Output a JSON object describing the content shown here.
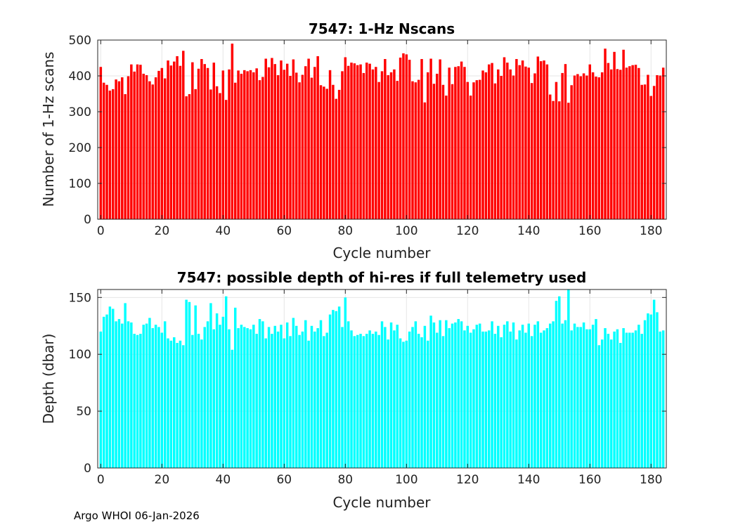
{
  "chart_data": [
    {
      "type": "bar",
      "title": "7547: 1-Hz Nscans",
      "xlabel": "Cycle number",
      "ylabel": "Number of 1-Hz scans",
      "xlim": [
        -1,
        185
      ],
      "ylim": [
        0,
        500
      ],
      "xticks": [
        0,
        20,
        40,
        60,
        80,
        100,
        120,
        140,
        160,
        180
      ],
      "yticks": [
        0,
        100,
        200,
        300,
        400,
        500
      ],
      "grid": true,
      "color": "#ff0000",
      "x_start": 0,
      "values": [
        425,
        381,
        375,
        359,
        363,
        390,
        385,
        396,
        349,
        399,
        432,
        412,
        432,
        431,
        406,
        402,
        385,
        376,
        396,
        414,
        422,
        393,
        443,
        429,
        440,
        455,
        428,
        470,
        343,
        349,
        438,
        363,
        420,
        447,
        433,
        422,
        362,
        437,
        371,
        352,
        415,
        333,
        418,
        490,
        381,
        415,
        406,
        416,
        413,
        416,
        410,
        421,
        388,
        397,
        448,
        424,
        450,
        433,
        402,
        443,
        417,
        434,
        400,
        446,
        409,
        382,
        403,
        427,
        448,
        395,
        425,
        455,
        374,
        370,
        364,
        416,
        375,
        336,
        361,
        413,
        452,
        428,
        437,
        435,
        430,
        432,
        408,
        437,
        434,
        418,
        425,
        383,
        413,
        447,
        402,
        410,
        418,
        386,
        451,
        463,
        460,
        445,
        385,
        382,
        389,
        447,
        326,
        410,
        448,
        378,
        406,
        446,
        375,
        345,
        423,
        377,
        425,
        427,
        440,
        425,
        383,
        345,
        382,
        388,
        389,
        415,
        410,
        432,
        436,
        379,
        418,
        400,
        452,
        437,
        418,
        401,
        447,
        430,
        443,
        426,
        423,
        380,
        407,
        454,
        441,
        443,
        432,
        348,
        330,
        383,
        329,
        408,
        433,
        325,
        374,
        401,
        405,
        399,
        407,
        401,
        432,
        410,
        398,
        396,
        410,
        476,
        436,
        418,
        467,
        419,
        417,
        473,
        423,
        427,
        430,
        431,
        422,
        375,
        376,
        403,
        344,
        372,
        402,
        401,
        423
      ]
    },
    {
      "type": "bar",
      "title": "7547: possible depth of hi-res if full telemetry used",
      "xlabel": "Cycle number",
      "ylabel": "Depth (dbar)",
      "xlim": [
        -1,
        185
      ],
      "ylim": [
        0,
        157
      ],
      "xticks": [
        0,
        20,
        40,
        60,
        80,
        100,
        120,
        140,
        160,
        180
      ],
      "yticks": [
        0,
        50,
        100,
        150
      ],
      "grid": true,
      "color": "#00ffff",
      "x_start": 0,
      "values": [
        120,
        133,
        135,
        142,
        140,
        129,
        131,
        127,
        145,
        129,
        128,
        118,
        117,
        118,
        126,
        127,
        132,
        123,
        126,
        124,
        119,
        129,
        114,
        112,
        115,
        110,
        112,
        108,
        148,
        146,
        117,
        143,
        118,
        113,
        124,
        129,
        145,
        122,
        136,
        126,
        133,
        151,
        122,
        104,
        141,
        123,
        126,
        124,
        123,
        122,
        126,
        118,
        131,
        129,
        114,
        124,
        118,
        125,
        120,
        126,
        114,
        128,
        116,
        132,
        125,
        117,
        120,
        130,
        112,
        125,
        120,
        123,
        130,
        116,
        119,
        135,
        139,
        138,
        142,
        124,
        150,
        129,
        121,
        116,
        117,
        118,
        116,
        118,
        121,
        118,
        120,
        117,
        129,
        124,
        113,
        128,
        121,
        126,
        114,
        111,
        112,
        120,
        124,
        129,
        118,
        115,
        125,
        112,
        134,
        128,
        119,
        130,
        116,
        130,
        123,
        127,
        128,
        131,
        129,
        121,
        125,
        119,
        122,
        126,
        127,
        120,
        120,
        121,
        129,
        118,
        125,
        115,
        126,
        129,
        120,
        128,
        113,
        121,
        126,
        119,
        127,
        116,
        126,
        129,
        119,
        121,
        123,
        127,
        129,
        147,
        151,
        127,
        130,
        157,
        121,
        127,
        124,
        124,
        128,
        122,
        122,
        126,
        131,
        108,
        113,
        123,
        118,
        113,
        120,
        122,
        110,
        123,
        119,
        119,
        119,
        121,
        126,
        118,
        130,
        136,
        135,
        148,
        137,
        120,
        121
      ]
    }
  ],
  "footer": {
    "credit": "Argo WHOI 06-Jan-2026"
  }
}
